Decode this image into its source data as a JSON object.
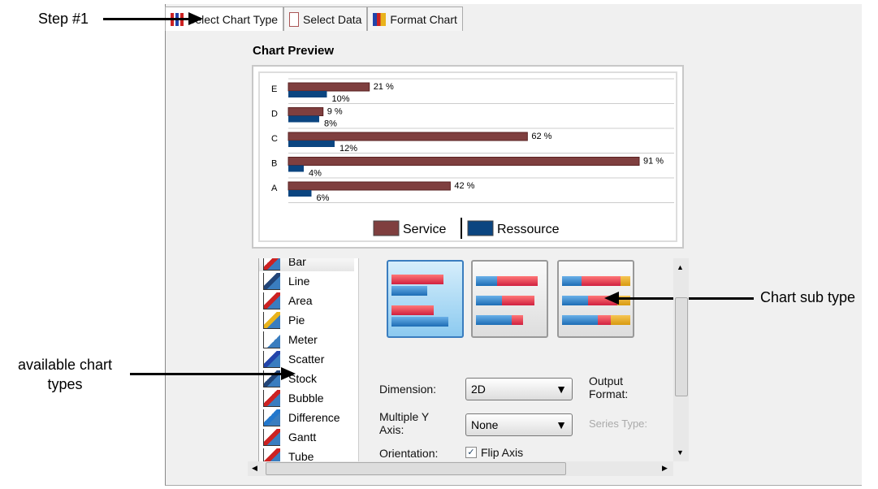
{
  "annotations": {
    "step": "Step #1",
    "types": "available chart types",
    "subtype": "Chart sub type"
  },
  "tabs": [
    {
      "label": "Select Chart Type",
      "icon": "bar-chart-icon"
    },
    {
      "label": "Select Data",
      "icon": "data-cursor-icon"
    },
    {
      "label": "Format Chart",
      "icon": "format-chart-icon"
    }
  ],
  "preview_title": "Chart Preview",
  "chart_data": {
    "type": "bar",
    "orientation": "horizontal",
    "categories": [
      "A",
      "B",
      "C",
      "D",
      "E"
    ],
    "series": [
      {
        "name": "Service",
        "color": "#7f3f3f",
        "values": [
          42,
          91,
          62,
          9,
          21
        ],
        "labels": [
          "42 %",
          "91 %",
          "62 %",
          "9 %",
          "21 %"
        ]
      },
      {
        "name": "Ressource",
        "color": "#0b4580",
        "values": [
          6,
          4,
          12,
          8,
          10
        ],
        "labels": [
          "6%",
          "4%",
          "12%",
          "8%",
          "10%"
        ]
      }
    ],
    "xlim": [
      0,
      100
    ],
    "grid": true,
    "legend": "bottom"
  },
  "chart_types": [
    "Bar",
    "Line",
    "Area",
    "Pie",
    "Meter",
    "Scatter",
    "Stock",
    "Bubble",
    "Difference",
    "Gantt",
    "Tube"
  ],
  "selected_type": "Bar",
  "subtypes": [
    "Side-by-side",
    "Stacked",
    "Percent Stacked"
  ],
  "form": {
    "dimension_label": "Dimension:",
    "dimension_value": "2D",
    "multi_y_label": "Multiple Y Axis:",
    "multi_y_value": "None",
    "orientation_label": "Orientation:",
    "flip_label": "Flip Axis",
    "flip_checked": true,
    "output_label": "Output Format:",
    "series_type_label": "Series Type:"
  }
}
